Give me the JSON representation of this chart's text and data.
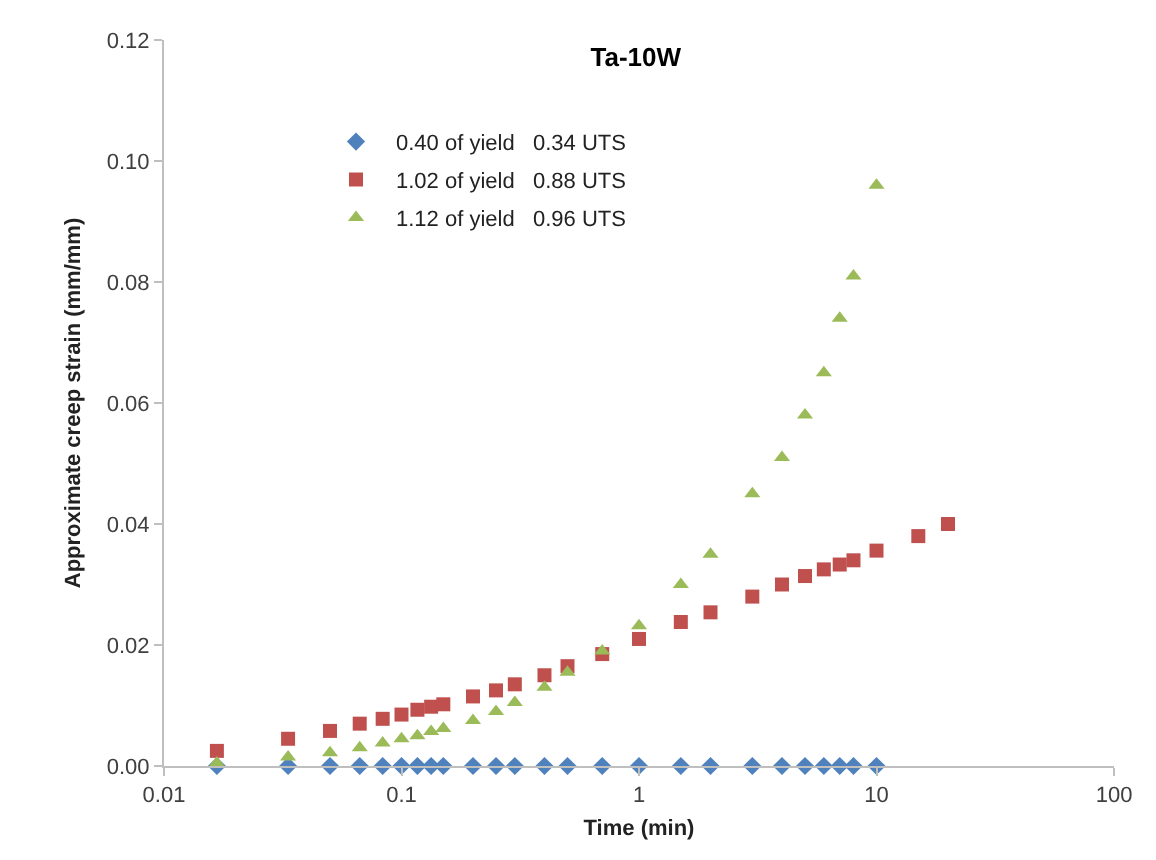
{
  "chart_data": {
    "type": "scatter",
    "title": "Ta-10W",
    "xlabel": "Time (min)",
    "ylabel": "Approximate creep strain (mm/mm)",
    "log": "x",
    "grid": false,
    "legend": "top left",
    "xlim": [
      0.01,
      100
    ],
    "xticks": [
      0.01,
      0.1,
      1,
      10,
      100
    ],
    "ylim": [
      0,
      0.12
    ],
    "yticks": [
      {
        "value": 0,
        "label": "0.00"
      },
      {
        "value": 0.02,
        "label": "0.02"
      },
      {
        "value": 0.04,
        "label": "0.04"
      },
      {
        "value": 0.06,
        "label": "0.06"
      },
      {
        "value": 0.08,
        "label": "0.08"
      },
      {
        "value": 0.1,
        "label": "0.10"
      },
      {
        "value": 0.12,
        "label": "0.12"
      }
    ],
    "series": [
      {
        "name": "0.40 of yield   0.34 UTS",
        "color": "#4f81bd",
        "marker": "diamond",
        "x": [
          0.0167,
          0.0333,
          0.05,
          0.0667,
          0.0833,
          0.1,
          0.1167,
          0.1333,
          0.15,
          0.2,
          0.25,
          0.3,
          0.4,
          0.5,
          0.7,
          1,
          1.5,
          2,
          3,
          4,
          5,
          6,
          7,
          8,
          10
        ],
        "values": [
          0,
          0,
          0,
          0,
          0,
          0,
          0,
          0,
          0,
          0,
          0,
          0,
          0,
          0,
          0,
          0,
          0,
          0,
          0,
          0,
          0,
          0,
          0,
          0,
          0
        ]
      },
      {
        "name": "1.02 of yield   0.88 UTS",
        "color": "#c0504d",
        "marker": "square",
        "x": [
          0.0167,
          0.0333,
          0.05,
          0.0667,
          0.0833,
          0.1,
          0.1167,
          0.1333,
          0.15,
          0.2,
          0.25,
          0.3,
          0.4,
          0.5,
          0.7,
          1,
          1.5,
          2,
          3,
          4,
          5,
          6,
          7,
          8,
          10,
          15,
          20
        ],
        "values": [
          0.0025,
          0.0045,
          0.0058,
          0.007,
          0.0078,
          0.0085,
          0.0093,
          0.0098,
          0.0102,
          0.0115,
          0.0125,
          0.0135,
          0.015,
          0.0165,
          0.0185,
          0.021,
          0.0238,
          0.0254,
          0.028,
          0.03,
          0.0314,
          0.0325,
          0.0333,
          0.034,
          0.0356,
          0.038,
          0.04
        ]
      },
      {
        "name": "1.12 of yield   0.96 UTS",
        "color": "#9bbb59",
        "marker": "triangle",
        "x": [
          0.0167,
          0.0333,
          0.05,
          0.0667,
          0.0833,
          0.1,
          0.1167,
          0.1333,
          0.15,
          0.2,
          0.25,
          0.3,
          0.4,
          0.5,
          0.7,
          1,
          1.5,
          2,
          3,
          4,
          5,
          6,
          7,
          8,
          10
        ],
        "values": [
          0.0005,
          0.0015,
          0.0022,
          0.003,
          0.0038,
          0.0045,
          0.005,
          0.0057,
          0.0062,
          0.0075,
          0.009,
          0.0105,
          0.013,
          0.0155,
          0.019,
          0.0232,
          0.03,
          0.035,
          0.045,
          0.051,
          0.058,
          0.065,
          0.074,
          0.081,
          0.096
        ]
      }
    ]
  }
}
